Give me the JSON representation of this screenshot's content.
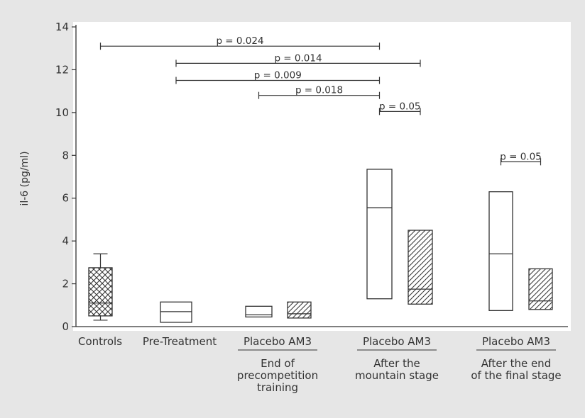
{
  "chart_data": {
    "type": "box",
    "ylabel": "il-6 (pg/ml)",
    "ylim": [
      0,
      14
    ],
    "yticks": [
      0,
      2,
      4,
      6,
      8,
      10,
      12,
      14
    ],
    "legend": "none",
    "categories": [
      {
        "id": "controls",
        "label": "Controls"
      },
      {
        "id": "pretreatment",
        "label": "Pre-Treatment"
      },
      {
        "id": "precomp_placebo",
        "label": "Placebo"
      },
      {
        "id": "precomp_am3",
        "label": "AM3"
      },
      {
        "id": "mountain_placebo",
        "label": "Placebo"
      },
      {
        "id": "mountain_am3",
        "label": "AM3"
      },
      {
        "id": "final_placebo",
        "label": "Placebo"
      },
      {
        "id": "final_am3",
        "label": "AM3"
      }
    ],
    "group_labels": [
      {
        "title": "Placebo AM3",
        "subtitle_lines": [
          "End of",
          "precompetition",
          "training"
        ]
      },
      {
        "title": "Placebo AM3",
        "subtitle_lines": [
          "After the",
          "mountain stage"
        ]
      },
      {
        "title": "Placebo AM3",
        "subtitle_lines": [
          "After the end",
          "of the final stage"
        ]
      }
    ],
    "boxes": [
      {
        "category": "controls",
        "q1": 0.5,
        "median": 1.1,
        "q3": 2.75,
        "whisker_low": 0.3,
        "whisker_high": 3.4,
        "pattern": "crosshatch"
      },
      {
        "category": "pretreatment",
        "q1": 0.2,
        "median": 0.7,
        "q3": 1.15,
        "pattern": "none"
      },
      {
        "category": "precomp_placebo",
        "q1": 0.45,
        "median": 0.55,
        "q3": 0.95,
        "pattern": "none"
      },
      {
        "category": "precomp_am3",
        "q1": 0.4,
        "median": 0.6,
        "q3": 1.15,
        "pattern": "diagonal"
      },
      {
        "category": "mountain_placebo",
        "q1": 1.3,
        "median": 5.55,
        "q3": 7.35,
        "pattern": "none"
      },
      {
        "category": "mountain_am3",
        "q1": 1.05,
        "median": 1.75,
        "q3": 4.5,
        "pattern": "diagonal"
      },
      {
        "category": "final_placebo",
        "q1": 0.75,
        "median": 3.4,
        "q3": 6.3,
        "pattern": "none"
      },
      {
        "category": "final_am3",
        "q1": 0.8,
        "median": 1.2,
        "q3": 2.7,
        "pattern": "diagonal"
      }
    ],
    "significance": [
      {
        "from": "controls",
        "to": "mountain_placebo",
        "y": 13.1,
        "label": "p = 0.024",
        "caps": "both"
      },
      {
        "from": "pretreatment",
        "to": "mountain_am3",
        "y": 12.3,
        "label": "p = 0.014",
        "caps": "both"
      },
      {
        "from": "pretreatment",
        "to": "mountain_placebo",
        "y": 11.5,
        "label": "p = 0.009",
        "caps": "both"
      },
      {
        "from": "precomp_placebo",
        "to": "mountain_placebo",
        "y": 10.8,
        "label": "p = 0.018",
        "caps": "both"
      },
      {
        "from": "mountain_placebo",
        "to": "mountain_am3",
        "y": 10.05,
        "label": "p = 0.05",
        "caps": "both"
      },
      {
        "from": "final_placebo",
        "to": "final_am3",
        "y": 7.7,
        "label": "p = 0.05",
        "caps": "both"
      }
    ]
  }
}
